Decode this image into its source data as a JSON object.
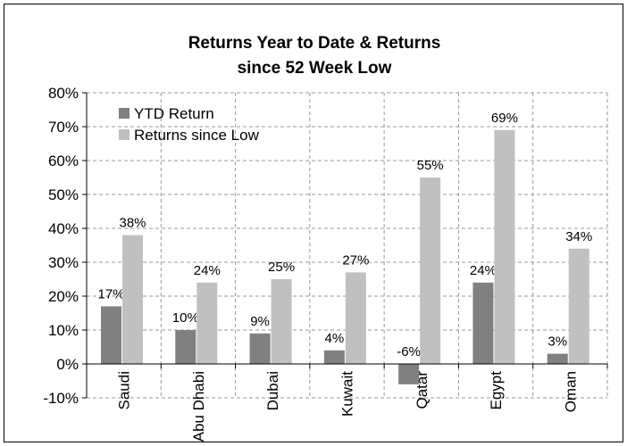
{
  "chart_data": {
    "type": "bar",
    "title": [
      "Returns Year to Date & Returns",
      "since 52 Week Low"
    ],
    "categories": [
      "Saudi",
      "Abu Dhabi",
      "Dubai",
      "Kuwait",
      "Qatar",
      "Egypt",
      "Oman"
    ],
    "series": [
      {
        "name": "YTD Return",
        "color": "#808080",
        "values": [
          17,
          10,
          9,
          4,
          -6,
          24,
          3
        ],
        "value_labels": [
          "17%",
          "10%",
          "9%",
          "4%",
          "-6%",
          "24%",
          "3%"
        ]
      },
      {
        "name": "Returns since Low",
        "color": "#c0c0c0",
        "values": [
          38,
          24,
          25,
          27,
          55,
          69,
          34
        ],
        "value_labels": [
          "38%",
          "24%",
          "25%",
          "27%",
          "55%",
          "69%",
          "34%"
        ]
      }
    ],
    "ylim": [
      -10,
      80
    ],
    "yticks": [
      {
        "value": -10,
        "label": "-10%"
      },
      {
        "value": 0,
        "label": "0%"
      },
      {
        "value": 10,
        "label": "10%"
      },
      {
        "value": 20,
        "label": "20%"
      },
      {
        "value": 30,
        "label": "30%"
      },
      {
        "value": 40,
        "label": "40%"
      },
      {
        "value": 50,
        "label": "50%"
      },
      {
        "value": 60,
        "label": "60%"
      },
      {
        "value": 70,
        "label": "70%"
      },
      {
        "value": 80,
        "label": "80%"
      }
    ],
    "grid": true,
    "legend": "upper left"
  }
}
